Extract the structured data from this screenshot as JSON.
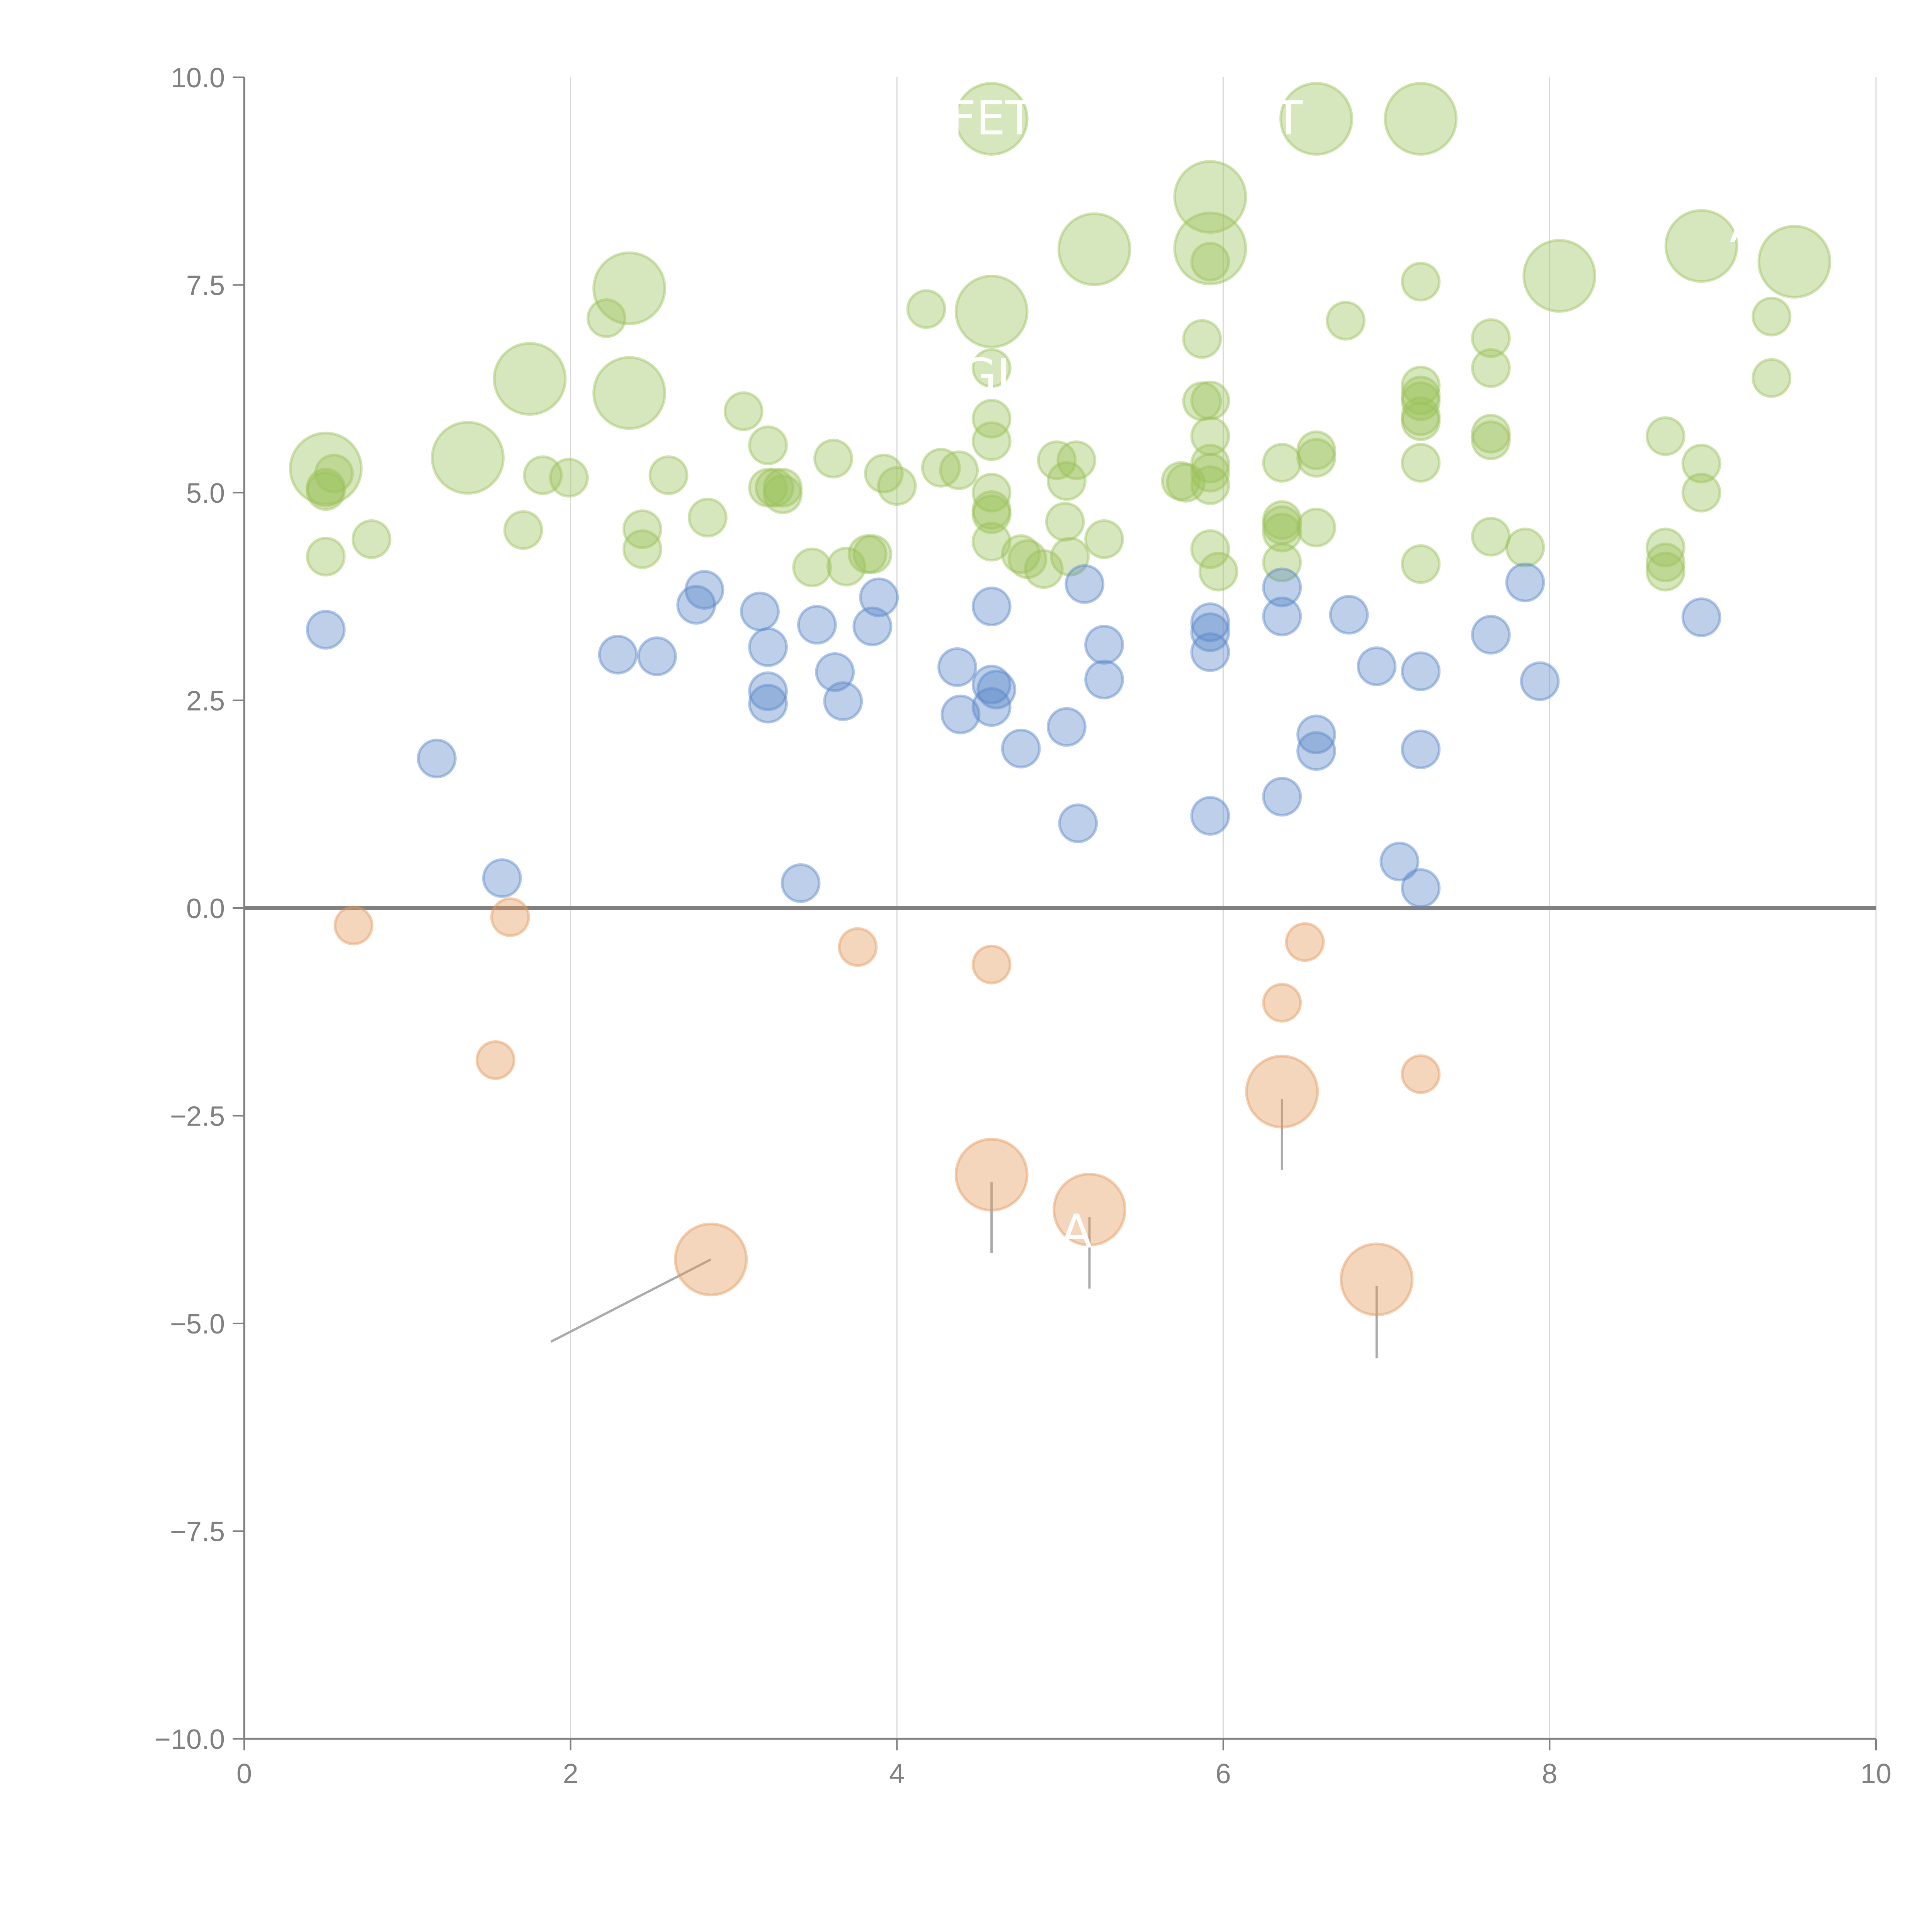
{
  "chart_data": {
    "type": "scatter",
    "title": "",
    "xlabel": "",
    "ylabel": "",
    "xlim": [
      0,
      10
    ],
    "ylim": [
      -10,
      10
    ],
    "x_ticks": [
      "0",
      "2",
      "4",
      "6",
      "8",
      "10"
    ],
    "x_tick_values": [
      0,
      2,
      4,
      6,
      8,
      10
    ],
    "y_ticks": [
      "−10.0",
      "−7.5",
      "−5.0",
      "−2.5",
      "0.0",
      "2.5",
      "5.0",
      "7.5",
      "10.0"
    ],
    "y_tick_values": [
      -10,
      -7.5,
      -5,
      -2.5,
      0,
      2.5,
      5,
      7.5,
      10
    ],
    "grid": "vertical-x",
    "zero_line": 0,
    "legend": "none",
    "size_scale": "relative (1 = small, 3 = large)",
    "series": [
      {
        "name": "green",
        "color": "#9bc25a",
        "points": [
          {
            "x": 0.5,
            "y": 5.29,
            "s": 3
          },
          {
            "x": 0.55,
            "y": 5.23,
            "s": 1
          },
          {
            "x": 0.5,
            "y": 5.02,
            "s": 1
          },
          {
            "x": 0.5,
            "y": 5.06,
            "s": 1
          },
          {
            "x": 0.5,
            "y": 4.23,
            "s": 1
          },
          {
            "x": 0.78,
            "y": 4.44,
            "s": 1
          },
          {
            "x": 1.37,
            "y": 5.42,
            "s": 3
          },
          {
            "x": 1.71,
            "y": 4.55,
            "s": 1
          },
          {
            "x": 1.75,
            "y": 6.37,
            "s": 3
          },
          {
            "x": 1.83,
            "y": 5.21,
            "s": 1
          },
          {
            "x": 1.99,
            "y": 5.18,
            "s": 1
          },
          {
            "x": 2.22,
            "y": 7.1,
            "s": 1
          },
          {
            "x": 2.36,
            "y": 7.46,
            "s": 3
          },
          {
            "x": 2.36,
            "y": 6.2,
            "s": 3
          },
          {
            "x": 2.44,
            "y": 4.56,
            "s": 1
          },
          {
            "x": 2.44,
            "y": 4.32,
            "s": 1
          },
          {
            "x": 2.6,
            "y": 5.21,
            "s": 1
          },
          {
            "x": 2.84,
            "y": 4.7,
            "s": 1
          },
          {
            "x": 3.06,
            "y": 5.98,
            "s": 1
          },
          {
            "x": 3.21,
            "y": 5.57,
            "s": 1
          },
          {
            "x": 3.21,
            "y": 5.06,
            "s": 1
          },
          {
            "x": 3.25,
            "y": 5.06,
            "s": 1
          },
          {
            "x": 3.3,
            "y": 4.98,
            "s": 1
          },
          {
            "x": 3.3,
            "y": 5.06,
            "s": 1
          },
          {
            "x": 3.48,
            "y": 4.1,
            "s": 1
          },
          {
            "x": 3.61,
            "y": 5.41,
            "s": 1
          },
          {
            "x": 3.69,
            "y": 4.11,
            "s": 1
          },
          {
            "x": 3.82,
            "y": 4.26,
            "s": 1
          },
          {
            "x": 3.85,
            "y": 4.26,
            "s": 1
          },
          {
            "x": 3.92,
            "y": 5.23,
            "s": 1
          },
          {
            "x": 4.0,
            "y": 5.08,
            "s": 1
          },
          {
            "x": 4.18,
            "y": 7.21,
            "s": 1
          },
          {
            "x": 4.27,
            "y": 5.3,
            "s": 1
          },
          {
            "x": 4.38,
            "y": 5.27,
            "s": 1
          },
          {
            "x": 4.58,
            "y": 9.5,
            "s": 3
          },
          {
            "x": 4.58,
            "y": 7.18,
            "s": 3
          },
          {
            "x": 4.58,
            "y": 6.5,
            "s": 1
          },
          {
            "x": 4.58,
            "y": 5.89,
            "s": 1
          },
          {
            "x": 4.58,
            "y": 5.62,
            "s": 1
          },
          {
            "x": 4.58,
            "y": 5.0,
            "s": 1
          },
          {
            "x": 4.58,
            "y": 4.79,
            "s": 1
          },
          {
            "x": 4.58,
            "y": 4.74,
            "s": 1
          },
          {
            "x": 4.58,
            "y": 4.41,
            "s": 1
          },
          {
            "x": 4.76,
            "y": 4.26,
            "s": 1
          },
          {
            "x": 4.8,
            "y": 4.2,
            "s": 1
          },
          {
            "x": 4.9,
            "y": 4.08,
            "s": 1
          },
          {
            "x": 4.98,
            "y": 5.39,
            "s": 1
          },
          {
            "x": 5.03,
            "y": 4.65,
            "s": 1
          },
          {
            "x": 5.04,
            "y": 5.14,
            "s": 1
          },
          {
            "x": 5.06,
            "y": 4.23,
            "s": 1
          },
          {
            "x": 5.1,
            "y": 5.39,
            "s": 1
          },
          {
            "x": 5.21,
            "y": 7.93,
            "s": 3
          },
          {
            "x": 5.27,
            "y": 4.44,
            "s": 1
          },
          {
            "x": 5.74,
            "y": 5.14,
            "s": 1
          },
          {
            "x": 5.77,
            "y": 5.12,
            "s": 1
          },
          {
            "x": 5.87,
            "y": 6.85,
            "s": 1
          },
          {
            "x": 5.87,
            "y": 6.1,
            "s": 1
          },
          {
            "x": 5.92,
            "y": 8.56,
            "s": 3
          },
          {
            "x": 5.92,
            "y": 7.94,
            "s": 3
          },
          {
            "x": 5.92,
            "y": 7.78,
            "s": 1
          },
          {
            "x": 5.92,
            "y": 6.11,
            "s": 1
          },
          {
            "x": 5.92,
            "y": 5.68,
            "s": 1
          },
          {
            "x": 5.92,
            "y": 5.35,
            "s": 1
          },
          {
            "x": 5.92,
            "y": 5.24,
            "s": 1
          },
          {
            "x": 5.92,
            "y": 5.09,
            "s": 1
          },
          {
            "x": 5.92,
            "y": 4.32,
            "s": 1
          },
          {
            "x": 5.97,
            "y": 4.05,
            "s": 1
          },
          {
            "x": 6.36,
            "y": 5.36,
            "s": 1
          },
          {
            "x": 6.36,
            "y": 4.67,
            "s": 1
          },
          {
            "x": 6.36,
            "y": 4.61,
            "s": 1
          },
          {
            "x": 6.36,
            "y": 4.52,
            "s": 1
          },
          {
            "x": 6.36,
            "y": 4.16,
            "s": 1
          },
          {
            "x": 6.57,
            "y": 9.5,
            "s": 3
          },
          {
            "x": 6.57,
            "y": 5.51,
            "s": 1
          },
          {
            "x": 6.57,
            "y": 5.42,
            "s": 1
          },
          {
            "x": 6.57,
            "y": 4.58,
            "s": 1
          },
          {
            "x": 6.75,
            "y": 7.07,
            "s": 1
          },
          {
            "x": 7.21,
            "y": 9.5,
            "s": 3
          },
          {
            "x": 7.21,
            "y": 7.54,
            "s": 1
          },
          {
            "x": 7.21,
            "y": 6.29,
            "s": 1
          },
          {
            "x": 7.21,
            "y": 6.17,
            "s": 1
          },
          {
            "x": 7.21,
            "y": 6.1,
            "s": 1
          },
          {
            "x": 7.21,
            "y": 5.92,
            "s": 1
          },
          {
            "x": 7.21,
            "y": 5.86,
            "s": 1
          },
          {
            "x": 7.21,
            "y": 5.36,
            "s": 1
          },
          {
            "x": 7.21,
            "y": 4.14,
            "s": 1
          },
          {
            "x": 7.64,
            "y": 6.86,
            "s": 1
          },
          {
            "x": 7.64,
            "y": 6.5,
            "s": 1
          },
          {
            "x": 7.64,
            "y": 5.71,
            "s": 1
          },
          {
            "x": 7.64,
            "y": 5.63,
            "s": 1
          },
          {
            "x": 7.64,
            "y": 4.47,
            "s": 1
          },
          {
            "x": 7.85,
            "y": 4.34,
            "s": 1
          },
          {
            "x": 8.06,
            "y": 7.61,
            "s": 3
          },
          {
            "x": 8.71,
            "y": 5.68,
            "s": 1
          },
          {
            "x": 8.71,
            "y": 4.34,
            "s": 1
          },
          {
            "x": 8.71,
            "y": 4.16,
            "s": 1
          },
          {
            "x": 8.71,
            "y": 4.05,
            "s": 1
          },
          {
            "x": 8.93,
            "y": 7.97,
            "s": 3
          },
          {
            "x": 8.93,
            "y": 5.35,
            "s": 1
          },
          {
            "x": 8.93,
            "y": 5.0,
            "s": 1
          },
          {
            "x": 9.36,
            "y": 7.12,
            "s": 1
          },
          {
            "x": 9.36,
            "y": 6.38,
            "s": 1
          },
          {
            "x": 9.5,
            "y": 7.78,
            "s": 3
          }
        ]
      },
      {
        "name": "blue",
        "color": "#5b87c9",
        "points": [
          {
            "x": 0.5,
            "y": 3.35,
            "s": 1
          },
          {
            "x": 1.18,
            "y": 1.8,
            "s": 1
          },
          {
            "x": 1.58,
            "y": 0.36,
            "s": 1
          },
          {
            "x": 2.29,
            "y": 3.05,
            "s": 1
          },
          {
            "x": 2.53,
            "y": 3.03,
            "s": 1
          },
          {
            "x": 2.77,
            "y": 3.65,
            "s": 1
          },
          {
            "x": 2.82,
            "y": 3.83,
            "s": 1
          },
          {
            "x": 3.16,
            "y": 3.57,
            "s": 1
          },
          {
            "x": 3.21,
            "y": 3.14,
            "s": 1
          },
          {
            "x": 3.21,
            "y": 2.61,
            "s": 1
          },
          {
            "x": 3.21,
            "y": 2.46,
            "s": 1
          },
          {
            "x": 3.41,
            "y": 0.3,
            "s": 1
          },
          {
            "x": 3.51,
            "y": 3.41,
            "s": 1
          },
          {
            "x": 3.62,
            "y": 2.84,
            "s": 1
          },
          {
            "x": 3.67,
            "y": 2.49,
            "s": 1
          },
          {
            "x": 3.85,
            "y": 3.39,
            "s": 1
          },
          {
            "x": 3.89,
            "y": 3.74,
            "s": 1
          },
          {
            "x": 4.37,
            "y": 2.9,
            "s": 1
          },
          {
            "x": 4.39,
            "y": 2.33,
            "s": 1
          },
          {
            "x": 4.58,
            "y": 3.63,
            "s": 1
          },
          {
            "x": 4.58,
            "y": 2.69,
            "s": 1
          },
          {
            "x": 4.61,
            "y": 2.63,
            "s": 1
          },
          {
            "x": 4.58,
            "y": 2.42,
            "s": 1
          },
          {
            "x": 4.76,
            "y": 1.92,
            "s": 1
          },
          {
            "x": 5.04,
            "y": 2.18,
            "s": 1
          },
          {
            "x": 5.11,
            "y": 1.02,
            "s": 1
          },
          {
            "x": 5.15,
            "y": 3.9,
            "s": 1
          },
          {
            "x": 5.27,
            "y": 3.17,
            "s": 1
          },
          {
            "x": 5.27,
            "y": 2.75,
            "s": 1
          },
          {
            "x": 5.92,
            "y": 3.44,
            "s": 1
          },
          {
            "x": 5.92,
            "y": 3.32,
            "s": 1
          },
          {
            "x": 5.92,
            "y": 3.08,
            "s": 1
          },
          {
            "x": 5.92,
            "y": 1.11,
            "s": 1
          },
          {
            "x": 6.36,
            "y": 3.86,
            "s": 1
          },
          {
            "x": 6.36,
            "y": 3.51,
            "s": 1
          },
          {
            "x": 6.36,
            "y": 1.34,
            "s": 1
          },
          {
            "x": 6.57,
            "y": 2.09,
            "s": 1
          },
          {
            "x": 6.57,
            "y": 1.89,
            "s": 1
          },
          {
            "x": 6.77,
            "y": 3.53,
            "s": 1
          },
          {
            "x": 6.94,
            "y": 2.91,
            "s": 1
          },
          {
            "x": 7.08,
            "y": 0.56,
            "s": 1
          },
          {
            "x": 7.21,
            "y": 2.85,
            "s": 1
          },
          {
            "x": 7.21,
            "y": 1.91,
            "s": 1
          },
          {
            "x": 7.21,
            "y": 0.24,
            "s": 1
          },
          {
            "x": 7.64,
            "y": 3.29,
            "s": 1
          },
          {
            "x": 7.85,
            "y": 3.92,
            "s": 1
          },
          {
            "x": 7.94,
            "y": 2.73,
            "s": 1
          },
          {
            "x": 8.93,
            "y": 3.5,
            "s": 1
          }
        ]
      },
      {
        "name": "orange",
        "color": "#e4995a",
        "points": [
          {
            "x": 0.67,
            "y": -0.21,
            "s": 1
          },
          {
            "x": 1.63,
            "y": -0.11,
            "s": 1
          },
          {
            "x": 1.54,
            "y": -1.83,
            "s": 1
          },
          {
            "x": 2.86,
            "y": -4.23,
            "s": 3
          },
          {
            "x": 3.76,
            "y": -0.47,
            "s": 1
          },
          {
            "x": 4.58,
            "y": -0.68,
            "s": 1
          },
          {
            "x": 4.58,
            "y": -3.21,
            "s": 3
          },
          {
            "x": 5.18,
            "y": -3.63,
            "s": 3
          },
          {
            "x": 6.36,
            "y": -1.14,
            "s": 1
          },
          {
            "x": 6.5,
            "y": -0.41,
            "s": 1
          },
          {
            "x": 6.36,
            "y": -2.21,
            "s": 3
          },
          {
            "x": 6.94,
            "y": -4.47,
            "s": 3
          },
          {
            "x": 7.21,
            "y": -2.0,
            "s": 1
          }
        ]
      }
    ],
    "annotations": [
      {
        "text": "FET",
        "x": 4.58,
        "y": 9.5,
        "tx": 4.58,
        "ty": 9.5,
        "color": "#ffffff"
      },
      {
        "text": "T",
        "x": 6.57,
        "y": 9.5,
        "tx": 6.4,
        "ty": 9.5,
        "color": "#ffffff"
      },
      {
        "text": "GL",
        "x": 4.58,
        "y": 6.5,
        "tx": 4.58,
        "ty": 6.4,
        "color": "#ffffff"
      },
      {
        "text": "A",
        "x": 8.93,
        "y": 7.97,
        "tx": 9.2,
        "ty": 8.2,
        "color": "#ffffff"
      },
      {
        "text": "A",
        "x": 5.18,
        "y": -3.63,
        "tx": 5.1,
        "ty": -3.9,
        "color": "#ffffff"
      }
    ],
    "leader_lines": [
      {
        "from": [
          2.86,
          -4.23
        ],
        "to": [
          1.88,
          -5.22
        ]
      },
      {
        "from": [
          4.58,
          -3.3
        ],
        "to": [
          4.58,
          -4.15
        ]
      },
      {
        "from": [
          5.18,
          -3.72
        ],
        "to": [
          5.18,
          -4.58
        ]
      },
      {
        "from": [
          6.36,
          -2.3
        ],
        "to": [
          6.36,
          -3.15
        ]
      },
      {
        "from": [
          6.94,
          -4.55
        ],
        "to": [
          6.94,
          -5.42
        ]
      }
    ]
  }
}
